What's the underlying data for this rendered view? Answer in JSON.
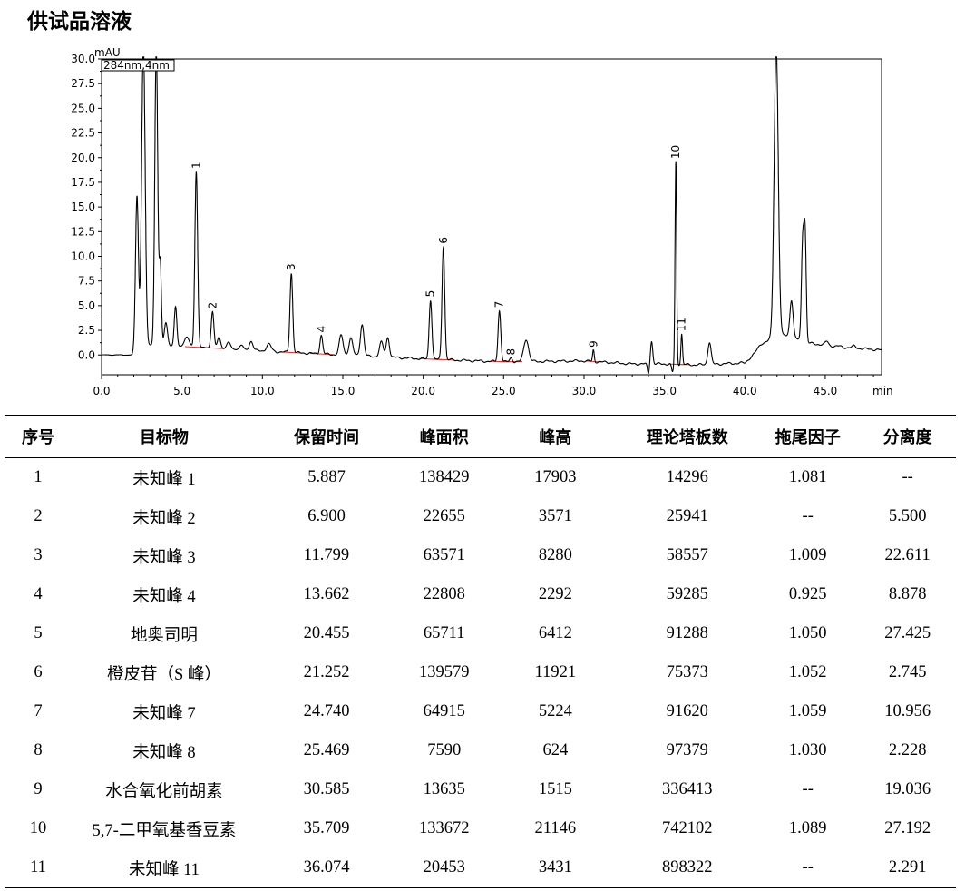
{
  "title": "供试品溶液",
  "chart_data": {
    "type": "line",
    "ylabel": "mAU",
    "xlabel": "min",
    "detector_label": "284nm,4nm",
    "xlim": [
      0,
      48.5
    ],
    "ylim": [
      -2.0,
      30.0
    ],
    "x_ticks": [
      "0.0",
      "5.0",
      "10.0",
      "15.0",
      "20.0",
      "25.0",
      "30.0",
      "35.0",
      "40.0",
      "45.0"
    ],
    "y_ticks": [
      "30.0",
      "27.5",
      "25.0",
      "22.5",
      "20.0",
      "17.5",
      "15.0",
      "12.5",
      "10.0",
      "7.5",
      "5.0",
      "2.5",
      "0.0"
    ],
    "line_color": "#000000",
    "integration_color": "#e03030",
    "labeled_peaks": [
      {
        "label": "1",
        "rt": 5.887,
        "height": 18.6
      },
      {
        "label": "2",
        "rt": 6.9,
        "height": 4.4
      },
      {
        "label": "3",
        "rt": 11.799,
        "height": 8.3
      },
      {
        "label": "4",
        "rt": 13.662,
        "height": 2.0
      },
      {
        "label": "5",
        "rt": 20.455,
        "height": 5.6
      },
      {
        "label": "6",
        "rt": 21.252,
        "height": 11.0
      },
      {
        "label": "7",
        "rt": 24.74,
        "height": 4.5
      },
      {
        "label": "8",
        "rt": 25.469,
        "height": -0.3
      },
      {
        "label": "9",
        "rt": 30.585,
        "height": 0.5
      },
      {
        "label": "10",
        "rt": 35.709,
        "height": 19.6
      },
      {
        "label": "11",
        "rt": 36.074,
        "height": 2.1
      }
    ],
    "unlabeled_peaks": [
      [
        2.2,
        15.8,
        0.09
      ],
      [
        2.6,
        31.0,
        0.11
      ],
      [
        3.4,
        31.0,
        0.09
      ],
      [
        3.65,
        8.8,
        0.07
      ],
      [
        4.0,
        3.0,
        0.1
      ],
      [
        4.6,
        4.6,
        0.08
      ],
      [
        5.3,
        1.5,
        0.15
      ],
      [
        7.3,
        1.5,
        0.1
      ],
      [
        7.9,
        1.0,
        0.12
      ],
      [
        8.7,
        0.7,
        0.12
      ],
      [
        9.3,
        1.1,
        0.12
      ],
      [
        10.4,
        0.8,
        0.15
      ],
      [
        14.9,
        1.7,
        0.12
      ],
      [
        15.5,
        1.4,
        0.12
      ],
      [
        16.2,
        2.8,
        0.11
      ],
      [
        17.4,
        1.0,
        0.12
      ],
      [
        17.8,
        1.5,
        0.1
      ],
      [
        26.4,
        1.3,
        0.15
      ],
      [
        34.2,
        1.1,
        0.07
      ],
      [
        37.8,
        1.0,
        0.1
      ],
      [
        41.0,
        0.8,
        0.2
      ],
      [
        41.95,
        31.0,
        0.13
      ],
      [
        42.9,
        5.3,
        0.1
      ],
      [
        43.6,
        11.3,
        0.08
      ],
      [
        43.75,
        11.2,
        0.07
      ],
      [
        45.1,
        1.1,
        0.1
      ],
      [
        45.9,
        0.6,
        0.1
      ],
      [
        46.8,
        0.6,
        0.12
      ]
    ]
  },
  "table": {
    "headers": [
      "序号",
      "目标物",
      "保留时间",
      "峰面积",
      "峰高",
      "理论塔板数",
      "拖尾因子",
      "分离度"
    ],
    "rows": [
      [
        "1",
        "未知峰 1",
        "5.887",
        "138429",
        "17903",
        "14296",
        "1.081",
        "--"
      ],
      [
        "2",
        "未知峰 2",
        "6.900",
        "22655",
        "3571",
        "25941",
        "--",
        "5.500"
      ],
      [
        "3",
        "未知峰 3",
        "11.799",
        "63571",
        "8280",
        "58557",
        "1.009",
        "22.611"
      ],
      [
        "4",
        "未知峰 4",
        "13.662",
        "22808",
        "2292",
        "59285",
        "0.925",
        "8.878"
      ],
      [
        "5",
        "地奥司明",
        "20.455",
        "65711",
        "6412",
        "91288",
        "1.050",
        "27.425"
      ],
      [
        "6",
        "橙皮苷（S 峰）",
        "21.252",
        "139579",
        "11921",
        "75373",
        "1.052",
        "2.745"
      ],
      [
        "7",
        "未知峰 7",
        "24.740",
        "64915",
        "5224",
        "91620",
        "1.059",
        "10.956"
      ],
      [
        "8",
        "未知峰 8",
        "25.469",
        "7590",
        "624",
        "97379",
        "1.030",
        "2.228"
      ],
      [
        "9",
        "水合氧化前胡素",
        "30.585",
        "13635",
        "1515",
        "336413",
        "--",
        "19.036"
      ],
      [
        "10",
        "5,7-二甲氧基香豆素",
        "35.709",
        "133672",
        "21146",
        "742102",
        "1.089",
        "27.192"
      ],
      [
        "11",
        "未知峰 11",
        "36.074",
        "20453",
        "3431",
        "898322",
        "--",
        "2.291"
      ]
    ]
  }
}
